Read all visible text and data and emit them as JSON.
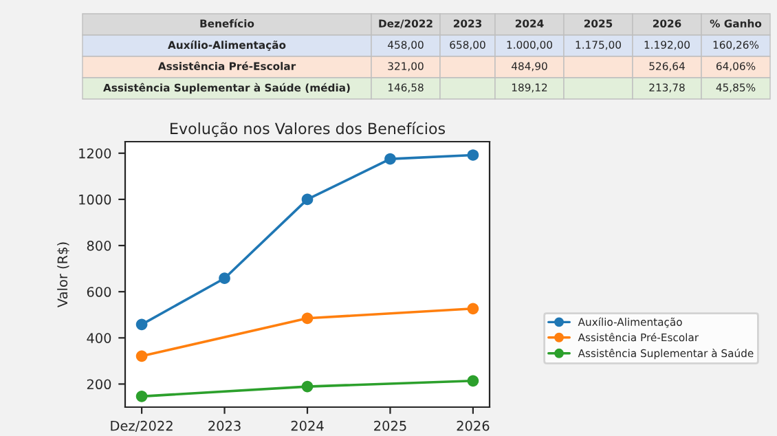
{
  "chart_data": {
    "type": "line",
    "title": "Evolução nos Valores dos Benefícios",
    "ylabel": "Valor (R$)",
    "categories": [
      "Dez/2022",
      "2023",
      "2024",
      "2025",
      "2026"
    ],
    "series": [
      {
        "name": "Auxílio-Alimentação",
        "color": "#1f77b4",
        "values": [
          458.0,
          658.0,
          1000.0,
          1175.0,
          1192.0
        ]
      },
      {
        "name": "Assistência Pré-Escolar",
        "color": "#ff7f0e",
        "values": [
          321.0,
          null,
          484.9,
          null,
          526.64
        ]
      },
      {
        "name": "Assistência Suplementar à Saúde",
        "color": "#2ca02c",
        "values": [
          146.58,
          null,
          189.12,
          null,
          213.78
        ]
      }
    ],
    "annotations": [
      "Benefício",
      "% Ganho",
      "Auxílio-Alimentação",
      "458,00",
      "658,00",
      "1.000,00",
      "1.175,00",
      "1.192,00",
      "160,26%",
      "Assistência Pré-Escolar",
      "321,00",
      "484,90",
      "526,64",
      "64,06%",
      "Assistência Suplementar à Saúde (média)",
      "146,58",
      "189,12",
      "213,78",
      "45,85%"
    ],
    "ylim": [
      100,
      1250
    ],
    "yticks": [
      200,
      400,
      600,
      800,
      1000,
      1200
    ],
    "marker": "circle",
    "line_style": "solid",
    "legend": "right",
    "grid": false
  }
}
